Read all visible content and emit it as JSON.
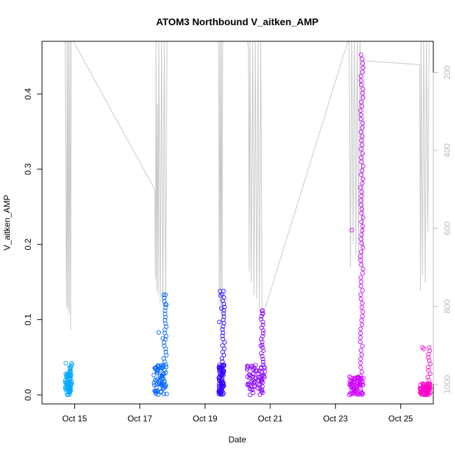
{
  "chart_data": {
    "type": "scatter",
    "title": "ATOM3 Northbound V_aitken_AMP",
    "xlabel": "Date",
    "ylabel": "V_aitken_AMP",
    "xlim": [
      "2016-10-14T00:00",
      "2016-10-26T00:00"
    ],
    "ylim": [
      -0.012,
      0.47
    ],
    "x_ticks": [
      {
        "date": "2016-10-15T00:00",
        "label": "Oct 15"
      },
      {
        "date": "2016-10-17T00:00",
        "label": "Oct 17"
      },
      {
        "date": "2016-10-19T00:00",
        "label": "Oct 19"
      },
      {
        "date": "2016-10-21T00:00",
        "label": "Oct 21"
      },
      {
        "date": "2016-10-23T00:00",
        "label": "Oct 23"
      },
      {
        "date": "2016-10-25T00:00",
        "label": "Oct 25"
      }
    ],
    "y_ticks": [
      0.0,
      0.1,
      0.2,
      0.3,
      0.4
    ],
    "y_tick_labels": [
      "0.0",
      "0.1",
      "0.2",
      "0.3",
      "0.4"
    ],
    "secondary_axis": {
      "side": "right",
      "reversed": true,
      "ylim": [
        1050,
        120
      ],
      "ticks": [
        200,
        400,
        600,
        800,
        1000
      ],
      "tick_labels": [
        "200",
        "400",
        "600",
        "800",
        "1000"
      ],
      "color": "#bbbbbb"
    },
    "altitude_line": {
      "color": "#c8c8c8",
      "points": [
        {
          "x": "2016-10-14T17:00",
          "y": 110
        },
        {
          "x": "2016-10-14T17:40",
          "y": 600
        },
        {
          "x": "2016-10-14T18:10",
          "y": 800
        },
        {
          "x": "2016-10-14T18:30",
          "y": 110
        },
        {
          "x": "2016-10-14T19:00",
          "y": 810
        },
        {
          "x": "2016-10-14T19:20",
          "y": 110
        },
        {
          "x": "2016-10-14T20:00",
          "y": 820
        },
        {
          "x": "2016-10-14T20:30",
          "y": 110
        },
        {
          "x": "2016-10-14T21:00",
          "y": 860
        },
        {
          "x": "2016-10-14T21:30",
          "y": 110
        },
        {
          "x": "2016-10-17T11:00",
          "y": 500
        },
        {
          "x": "2016-10-17T11:30",
          "y": 730
        },
        {
          "x": "2016-10-17T12:00",
          "y": 110
        },
        {
          "x": "2016-10-17T12:30",
          "y": 760
        },
        {
          "x": "2016-10-17T13:00",
          "y": 280
        },
        {
          "x": "2016-10-17T13:30",
          "y": 770
        },
        {
          "x": "2016-10-17T14:00",
          "y": 110
        },
        {
          "x": "2016-10-17T15:00",
          "y": 790
        },
        {
          "x": "2016-10-17T16:00",
          "y": 110
        },
        {
          "x": "2016-10-17T17:00",
          "y": 800
        },
        {
          "x": "2016-10-17T18:00",
          "y": 110
        },
        {
          "x": "2016-10-17T19:00",
          "y": 800
        },
        {
          "x": "2016-10-17T20:00",
          "y": 110
        },
        {
          "x": "2016-10-19T10:00",
          "y": 110
        },
        {
          "x": "2016-10-19T10:30",
          "y": 790
        },
        {
          "x": "2016-10-19T11:00",
          "y": 110
        },
        {
          "x": "2016-10-19T11:30",
          "y": 820
        },
        {
          "x": "2016-10-19T12:00",
          "y": 110
        },
        {
          "x": "2016-10-19T12:30",
          "y": 830
        },
        {
          "x": "2016-10-19T13:00",
          "y": 110
        },
        {
          "x": "2016-10-20T07:00",
          "y": 110
        },
        {
          "x": "2016-10-20T08:00",
          "y": 140
        },
        {
          "x": "2016-10-20T08:30",
          "y": 710
        },
        {
          "x": "2016-10-20T09:00",
          "y": 110
        },
        {
          "x": "2016-10-20T10:00",
          "y": 740
        },
        {
          "x": "2016-10-20T11:00",
          "y": 110
        },
        {
          "x": "2016-10-20T12:00",
          "y": 770
        },
        {
          "x": "2016-10-20T13:00",
          "y": 110
        },
        {
          "x": "2016-10-20T14:00",
          "y": 780
        },
        {
          "x": "2016-10-20T15:00",
          "y": 110
        },
        {
          "x": "2016-10-20T16:00",
          "y": 810
        },
        {
          "x": "2016-10-20T17:00",
          "y": 110
        },
        {
          "x": "2016-10-20T18:00",
          "y": 830
        },
        {
          "x": "2016-10-23T10:00",
          "y": 110
        },
        {
          "x": "2016-10-23T11:00",
          "y": 700
        },
        {
          "x": "2016-10-23T12:00",
          "y": 110
        },
        {
          "x": "2016-10-23T13:00",
          "y": 640
        },
        {
          "x": "2016-10-23T14:00",
          "y": 110
        },
        {
          "x": "2016-10-23T15:00",
          "y": 670
        },
        {
          "x": "2016-10-23T16:00",
          "y": 110
        },
        {
          "x": "2016-10-23T17:00",
          "y": 680
        },
        {
          "x": "2016-10-23T18:00",
          "y": 110
        },
        {
          "x": "2016-10-23T19:00",
          "y": 360
        },
        {
          "x": "2016-10-23T20:00",
          "y": 700
        },
        {
          "x": "2016-10-23T21:00",
          "y": 170
        },
        {
          "x": "2016-10-25T14:00",
          "y": 180
        },
        {
          "x": "2016-10-25T14:30",
          "y": 760
        },
        {
          "x": "2016-10-25T15:00",
          "y": 110
        },
        {
          "x": "2016-10-25T16:00",
          "y": 720
        },
        {
          "x": "2016-10-25T17:00",
          "y": 110
        },
        {
          "x": "2016-10-25T18:00",
          "y": 740
        },
        {
          "x": "2016-10-25T19:00",
          "y": 110
        },
        {
          "x": "2016-10-25T20:00",
          "y": 610
        },
        {
          "x": "2016-10-25T21:00",
          "y": 110
        }
      ]
    },
    "series": [
      {
        "color": "#00aaff",
        "x_range": [
          "2016-10-14T17:00",
          "2016-10-14T22:00"
        ],
        "y_base": [
          0.0,
          0.03
        ],
        "peak": 0.042,
        "outliers": [
          {
            "x": "2016-10-14T17:30",
            "y": 0.042
          },
          {
            "x": "2016-10-14T21:00",
            "y": 0.036
          }
        ]
      },
      {
        "color": "#0066ff",
        "x_range": [
          "2016-10-17T10:00",
          "2016-10-17T20:00"
        ],
        "y_base": [
          0.0,
          0.04
        ],
        "peak": 0.133,
        "outliers": [
          {
            "x": "2016-10-17T14:00",
            "y": 0.083
          },
          {
            "x": "2016-10-17T17:00",
            "y": 0.075
          },
          {
            "x": "2016-10-17T19:00",
            "y": 0.133
          },
          {
            "x": "2016-10-17T19:30",
            "y": 0.12
          }
        ]
      },
      {
        "color": "#3300ff",
        "x_range": [
          "2016-10-19T10:00",
          "2016-10-19T14:00"
        ],
        "y_base": [
          0.0,
          0.04
        ],
        "peak": 0.138,
        "outliers": [
          {
            "x": "2016-10-19T11:00",
            "y": 0.138
          },
          {
            "x": "2016-10-19T11:30",
            "y": 0.132
          },
          {
            "x": "2016-10-19T12:00",
            "y": 0.115
          },
          {
            "x": "2016-10-19T10:30",
            "y": 0.097
          }
        ]
      },
      {
        "color": "#8800ff",
        "x_range": [
          "2016-10-20T07:00",
          "2016-10-20T20:00"
        ],
        "y_base": [
          0.0,
          0.04
        ],
        "peak": 0.112,
        "outliers": [
          {
            "x": "2016-10-20T18:00",
            "y": 0.112
          },
          {
            "x": "2016-10-20T18:30",
            "y": 0.108
          },
          {
            "x": "2016-10-20T17:00",
            "y": 0.065
          }
        ]
      },
      {
        "color": "#cc00ff",
        "x_range": [
          "2016-10-23T10:00",
          "2016-10-23T21:00"
        ],
        "y_base": [
          0.0,
          0.025
        ],
        "peak": 0.452,
        "outliers": [
          {
            "x": "2016-10-23T12:00",
            "y": 0.219
          }
        ]
      },
      {
        "color": "#ff00cc",
        "x_range": [
          "2016-10-25T14:00",
          "2016-10-25T22:00"
        ],
        "y_base": [
          0.0,
          0.015
        ],
        "peak": 0.063,
        "outliers": [
          {
            "x": "2016-10-25T16:00",
            "y": 0.063
          },
          {
            "x": "2016-10-25T17:00",
            "y": 0.061
          }
        ]
      }
    ]
  }
}
